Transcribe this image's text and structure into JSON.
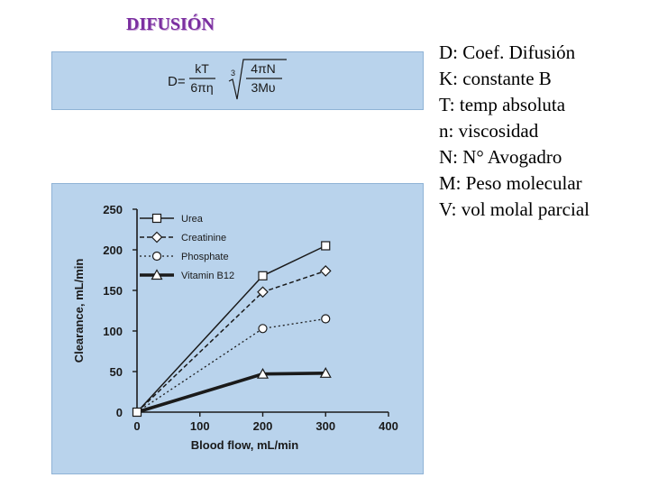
{
  "slide": {
    "title": "DIFUSIÓN"
  },
  "formula": {
    "lhs": "D=",
    "num": "kT",
    "den": "6πη",
    "root_index": "3",
    "radicand_num": "4πN",
    "radicand_den": "3Mυ"
  },
  "definitions": [
    "D: Coef. Difusión",
    "K: constante B",
    "T: temp absoluta",
    "n: viscosidad",
    "N: N° Avogadro",
    "M: Peso molecular",
    "V: vol molal parcial"
  ],
  "chart_data": {
    "type": "line",
    "xlabel": "Blood flow, mL/min",
    "ylabel": "Clearance, mL/min",
    "xlim": [
      0,
      400
    ],
    "ylim": [
      0,
      250
    ],
    "xticks": [
      0,
      100,
      200,
      300,
      400
    ],
    "yticks": [
      0,
      50,
      100,
      150,
      200,
      250
    ],
    "x": [
      0,
      200,
      300
    ],
    "series": [
      {
        "name": "Urea",
        "marker": "square",
        "style": "solid",
        "values": [
          0,
          168,
          205
        ]
      },
      {
        "name": "Creatinine",
        "marker": "diamond",
        "style": "dashed",
        "values": [
          0,
          148,
          174
        ]
      },
      {
        "name": "Phosphate",
        "marker": "circle",
        "style": "dotted",
        "values": [
          0,
          103,
          115
        ]
      },
      {
        "name": "Vitamin B12",
        "marker": "triangle",
        "style": "thick",
        "values": [
          0,
          47,
          48
        ]
      }
    ],
    "legend_position": "top-left"
  }
}
